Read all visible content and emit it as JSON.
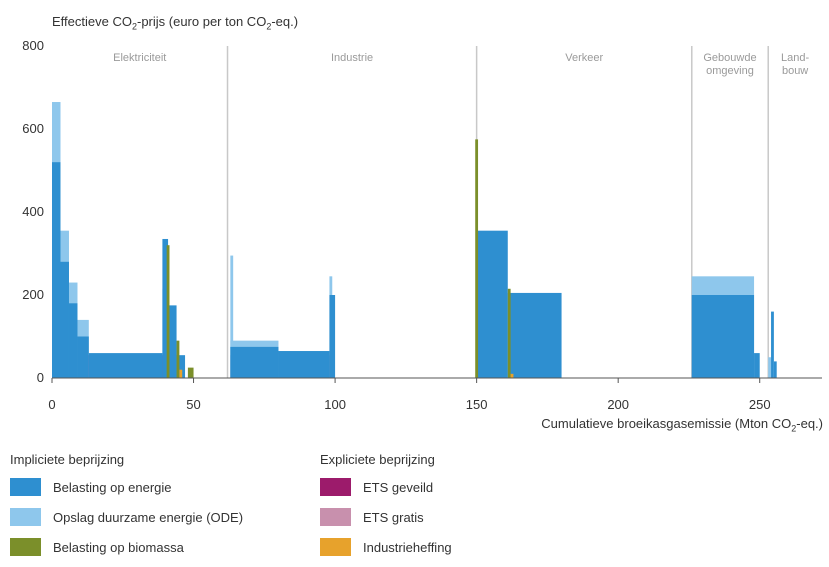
{
  "chart_data": {
    "type": "bar",
    "title": "Effectieve CO₂-prijs (euro per ton CO₂-eq.)",
    "ylabel": "Effectieve CO₂-prijs (euro per ton CO₂-eq.)",
    "xlabel": "Cumulatieve broeikasgasemissie (Mton CO₂-eq.)",
    "xlim": [
      0,
      272
    ],
    "ylim": [
      0,
      800
    ],
    "x_ticks": [
      0,
      50,
      100,
      150,
      200,
      250
    ],
    "y_ticks": [
      0,
      200,
      400,
      600,
      800
    ],
    "grid": false,
    "sectors": [
      {
        "label": "Elektriciteit",
        "x_end": 62
      },
      {
        "label": "Industrie",
        "x_end": 150
      },
      {
        "label": "Verkeer",
        "x_end": 226
      },
      {
        "label": "Gebouwde omgeving",
        "x_end": 253
      },
      {
        "label": "Land-bouw",
        "x_end": 272
      }
    ],
    "series": [
      {
        "name": "ETS geveild",
        "color": "#9c1b6b",
        "values": [
          {
            "x0": 0,
            "x1": 39,
            "y0": 0,
            "y1": 55
          }
        ]
      },
      {
        "name": "ETS gratis",
        "color": "#c890ad",
        "values": [
          {
            "x0": 63,
            "x1": 98,
            "y0": 0,
            "y1": 55
          }
        ]
      },
      {
        "name": "Opslag duurzame energie (ODE)",
        "color": "#8ec7ec",
        "values": [
          {
            "x0": 0,
            "x1": 3,
            "y0": 0,
            "y1": 665
          },
          {
            "x0": 3,
            "x1": 6,
            "y0": 0,
            "y1": 355
          },
          {
            "x0": 6,
            "x1": 9,
            "y0": 0,
            "y1": 230
          },
          {
            "x0": 9,
            "x1": 13,
            "y0": 0,
            "y1": 140
          },
          {
            "x0": 39,
            "x1": 41,
            "y0": 0,
            "y1": 215
          },
          {
            "x0": 41,
            "x1": 43,
            "y0": 0,
            "y1": 110
          },
          {
            "x0": 63,
            "x1": 64,
            "y0": 0,
            "y1": 295
          },
          {
            "x0": 63,
            "x1": 80,
            "y0": 0,
            "y1": 90
          },
          {
            "x0": 98,
            "x1": 99,
            "y0": 0,
            "y1": 245
          },
          {
            "x0": 226,
            "x1": 248,
            "y0": 0,
            "y1": 245
          },
          {
            "x0": 253,
            "x1": 254,
            "y0": 0,
            "y1": 50
          }
        ]
      },
      {
        "name": "Belasting op energie",
        "color": "#2e8fd0",
        "values": [
          {
            "x0": 0,
            "x1": 3,
            "y0": 0,
            "y1": 520
          },
          {
            "x0": 3,
            "x1": 6,
            "y0": 0,
            "y1": 280
          },
          {
            "x0": 6,
            "x1": 9,
            "y0": 0,
            "y1": 180
          },
          {
            "x0": 9,
            "x1": 13,
            "y0": 0,
            "y1": 100
          },
          {
            "x0": 13,
            "x1": 39,
            "y0": 0,
            "y1": 60
          },
          {
            "x0": 39,
            "x1": 41,
            "y0": 0,
            "y1": 335
          },
          {
            "x0": 41,
            "x1": 44,
            "y0": 0,
            "y1": 175
          },
          {
            "x0": 44,
            "x1": 47,
            "y0": 0,
            "y1": 55
          },
          {
            "x0": 63,
            "x1": 80,
            "y0": 0,
            "y1": 75
          },
          {
            "x0": 80,
            "x1": 98,
            "y0": 0,
            "y1": 65
          },
          {
            "x0": 98,
            "x1": 100,
            "y0": 0,
            "y1": 200
          },
          {
            "x0": 150,
            "x1": 161,
            "y0": 0,
            "y1": 355
          },
          {
            "x0": 161,
            "x1": 180,
            "y0": 0,
            "y1": 205
          },
          {
            "x0": 226,
            "x1": 248,
            "y0": 0,
            "y1": 200
          },
          {
            "x0": 248,
            "x1": 250,
            "y0": 0,
            "y1": 60
          },
          {
            "x0": 254,
            "x1": 255,
            "y0": 0,
            "y1": 160
          },
          {
            "x0": 255,
            "x1": 256,
            "y0": 0,
            "y1": 40
          }
        ]
      },
      {
        "name": "Belasting op biomassa",
        "color": "#7b8f2a",
        "values": [
          {
            "x0": 40.5,
            "x1": 41.5,
            "y0": 0,
            "y1": 320
          },
          {
            "x0": 44,
            "x1": 45,
            "y0": 0,
            "y1": 90
          },
          {
            "x0": 48,
            "x1": 50,
            "y0": 0,
            "y1": 25
          },
          {
            "x0": 149.5,
            "x1": 150.5,
            "y0": 0,
            "y1": 575
          },
          {
            "x0": 161,
            "x1": 162,
            "y0": 0,
            "y1": 215
          }
        ]
      },
      {
        "name": "Industrieheffing",
        "color": "#e7a22c",
        "values": [
          {
            "x0": 45,
            "x1": 46,
            "y0": 0,
            "y1": 20
          },
          {
            "x0": 162,
            "x1": 163,
            "y0": 0,
            "y1": 10
          }
        ]
      }
    ]
  },
  "legend": {
    "implicit_title": "Impliciete beprijzing",
    "explicit_title": "Expliciete beprijzing",
    "implicit_items": [
      {
        "label": "Belasting op energie",
        "color": "#2e8fd0"
      },
      {
        "label": "Opslag duurzame energie (ODE)",
        "color": "#8ec7ec"
      },
      {
        "label": "Belasting op biomassa",
        "color": "#7b8f2a"
      }
    ],
    "explicit_items": [
      {
        "label": "ETS geveild",
        "color": "#9c1b6b"
      },
      {
        "label": "ETS gratis",
        "color": "#c890ad"
      },
      {
        "label": "Industrieheffing",
        "color": "#e7a22c"
      }
    ]
  },
  "axis_titles": {
    "y_prefix": "Effectieve CO",
    "y_sub": "2",
    "y_suffix": "-prijs (euro per ton CO",
    "y_sub2": "2",
    "y_end": "-eq.)",
    "x_prefix": "Cumulatieve broeikasgasemissie (Mton CO",
    "x_sub": "2",
    "x_end": "-eq.)"
  }
}
